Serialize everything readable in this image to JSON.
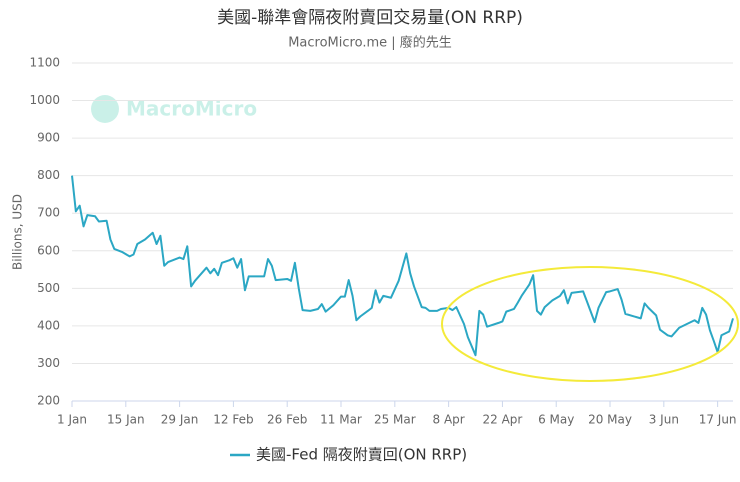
{
  "chart_data": {
    "type": "line",
    "title": "美國-聯準會隔夜附賣回交易量(ON RRP)",
    "subtitle": "MacroMicro.me | 廢的先生",
    "watermark": "MacroMicro",
    "y_label": "Billions, USD",
    "x": [
      0,
      1,
      2,
      3,
      4,
      6,
      7,
      9,
      10,
      11,
      13,
      15,
      16,
      17,
      19,
      21,
      22,
      23,
      24,
      25,
      27,
      28,
      29,
      30,
      31,
      32,
      35,
      36,
      37,
      38,
      39,
      41,
      42,
      43,
      44,
      45,
      46,
      50,
      51,
      52,
      53,
      56,
      57,
      58,
      59,
      60,
      62,
      64,
      65,
      66,
      68,
      70,
      71,
      72,
      73,
      74,
      75,
      77,
      78,
      79,
      80,
      81,
      83,
      85,
      87,
      88,
      89,
      91,
      92,
      93,
      95,
      96,
      98,
      99,
      100,
      102,
      103,
      105,
      106,
      107,
      108,
      111,
      112,
      113,
      115,
      116,
      117,
      119,
      120,
      121,
      122,
      123,
      125,
      127,
      128,
      129,
      130,
      133,
      134,
      136,
      137,
      139,
      140,
      142,
      143,
      144,
      148,
      149,
      150,
      152,
      153,
      155,
      156,
      158,
      161,
      162,
      163,
      164,
      165,
      166,
      167,
      168,
      169,
      171,
      172
    ],
    "series": [
      {
        "name": "美國-Fed 隔夜附賣回(ON RRP)",
        "color": "#2ba7c4",
        "values": [
          800,
          705,
          720,
          665,
          695,
          692,
          678,
          680,
          630,
          605,
          597,
          585,
          590,
          618,
          630,
          648,
          618,
          640,
          560,
          570,
          578,
          582,
          578,
          612,
          505,
          520,
          555,
          540,
          552,
          535,
          568,
          575,
          580,
          555,
          578,
          495,
          532,
          532,
          578,
          560,
          522,
          525,
          520,
          568,
          500,
          442,
          440,
          445,
          458,
          438,
          455,
          478,
          478,
          522,
          480,
          415,
          425,
          440,
          448,
          495,
          462,
          480,
          475,
          520,
          593,
          540,
          505,
          450,
          448,
          440,
          440,
          445,
          448,
          442,
          450,
          405,
          370,
          322,
          440,
          430,
          398,
          408,
          412,
          438,
          445,
          462,
          480,
          510,
          535,
          440,
          430,
          450,
          468,
          480,
          495,
          460,
          488,
          492,
          465,
          410,
          448,
          490,
          492,
          498,
          470,
          432,
          420,
          460,
          448,
          428,
          390,
          375,
          372,
          395,
          410,
          415,
          408,
          448,
          430,
          388,
          360,
          330,
          375,
          385,
          420
        ]
      }
    ],
    "xlim": [
      0,
      172
    ],
    "xticks": [
      {
        "value": 0,
        "label": "1 Jan"
      },
      {
        "value": 14,
        "label": "15 Jan"
      },
      {
        "value": 28,
        "label": "29 Jan"
      },
      {
        "value": 42,
        "label": "12 Feb"
      },
      {
        "value": 56,
        "label": "26 Feb"
      },
      {
        "value": 70,
        "label": "11 Mar"
      },
      {
        "value": 84,
        "label": "25 Mar"
      },
      {
        "value": 98,
        "label": "8 Apr"
      },
      {
        "value": 112,
        "label": "22 Apr"
      },
      {
        "value": 126,
        "label": "6 May"
      },
      {
        "value": 140,
        "label": "20 May"
      },
      {
        "value": 154,
        "label": "3 Jun"
      },
      {
        "value": 168,
        "label": "17 Jun"
      }
    ],
    "ylim": [
      200,
      1100
    ],
    "yticks": [
      200,
      300,
      400,
      500,
      600,
      700,
      800,
      900,
      1000,
      1100
    ],
    "grid": true
  }
}
